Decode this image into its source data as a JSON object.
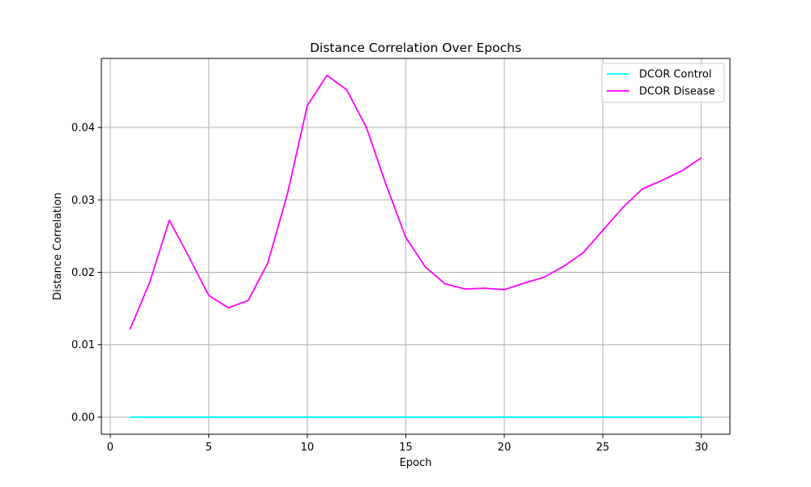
{
  "chart_data": {
    "type": "line",
    "title": "Distance Correlation Over Epochs",
    "xlabel": "Epoch",
    "ylabel": "Distance Correlation",
    "xlim": [
      -0.45,
      31.45
    ],
    "ylim": [
      -0.00236,
      0.04953
    ],
    "xticks": [
      0,
      5,
      10,
      15,
      20,
      25,
      30
    ],
    "yticks": [
      0.0,
      0.01,
      0.02,
      0.03,
      0.04
    ],
    "xtick_labels": [
      "0",
      "5",
      "10",
      "15",
      "20",
      "25",
      "30"
    ],
    "ytick_labels": [
      "0.00",
      "0.01",
      "0.02",
      "0.03",
      "0.04"
    ],
    "grid": true,
    "legend_position": "top-right",
    "x": [
      1,
      2,
      3,
      4,
      5,
      6,
      7,
      8,
      9,
      10,
      11,
      12,
      13,
      14,
      15,
      16,
      17,
      18,
      19,
      20,
      21,
      22,
      23,
      24,
      25,
      26,
      27,
      28,
      29,
      30
    ],
    "series": [
      {
        "name": "DCOR Control",
        "color": "#00ffff",
        "values": [
          0,
          0,
          0,
          0,
          0,
          0,
          0,
          0,
          0,
          0,
          0,
          0,
          0,
          0,
          0,
          0,
          0,
          0,
          0,
          0,
          0,
          0,
          0,
          0,
          0,
          0,
          0,
          0,
          0,
          0
        ]
      },
      {
        "name": "DCOR Disease",
        "color": "#ff00ff",
        "values": [
          0.0121,
          0.0186,
          0.0272,
          0.0221,
          0.0168,
          0.0151,
          0.0161,
          0.0213,
          0.0309,
          0.043,
          0.0472,
          0.0452,
          0.04,
          0.0321,
          0.0248,
          0.0207,
          0.0184,
          0.0177,
          0.0178,
          0.0176,
          0.0185,
          0.0193,
          0.0208,
          0.0227,
          0.0258,
          0.0289,
          0.0315,
          0.0327,
          0.034,
          0.0358
        ]
      }
    ]
  }
}
